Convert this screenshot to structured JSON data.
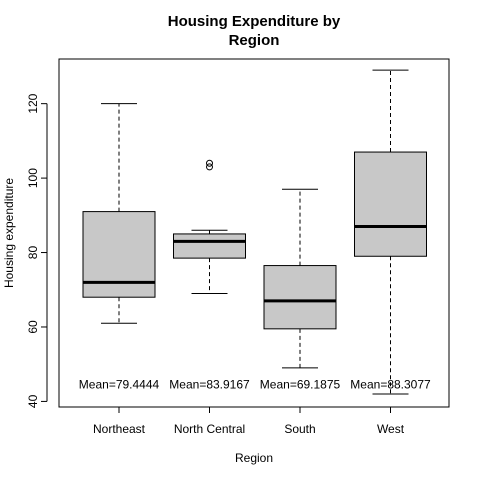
{
  "chart_data": {
    "type": "box",
    "title_lines": [
      "Housing Expenditure by",
      "Region"
    ],
    "xlabel": "Region",
    "ylabel": "Housing expenditure",
    "ylim": [
      38.5,
      132
    ],
    "yticks": [
      40,
      60,
      80,
      100,
      120
    ],
    "categories": [
      "Northeast",
      "North Central",
      "South",
      "West"
    ],
    "boxes": [
      {
        "category": "Northeast",
        "whisker_low": 61,
        "q1": 68,
        "median": 72,
        "q3": 91,
        "whisker_high": 120,
        "outliers": [],
        "mean_label": "Mean=79.4444"
      },
      {
        "category": "North Central",
        "whisker_low": 69,
        "q1": 78.5,
        "median": 83,
        "q3": 85,
        "whisker_high": 86,
        "outliers": [
          103,
          104
        ],
        "mean_label": "Mean=83.9167"
      },
      {
        "category": "South",
        "whisker_low": 49,
        "q1": 59.5,
        "median": 67,
        "q3": 76.5,
        "whisker_high": 97,
        "outliers": [],
        "mean_label": "Mean=69.1875"
      },
      {
        "category": "West",
        "whisker_low": 42,
        "q1": 79,
        "median": 87,
        "q3": 107,
        "whisker_high": 129,
        "outliers": [],
        "mean_label": "Mean=88.3077"
      }
    ],
    "mean_label_y": 44.5,
    "box_fill": "#c8c8c8"
  }
}
